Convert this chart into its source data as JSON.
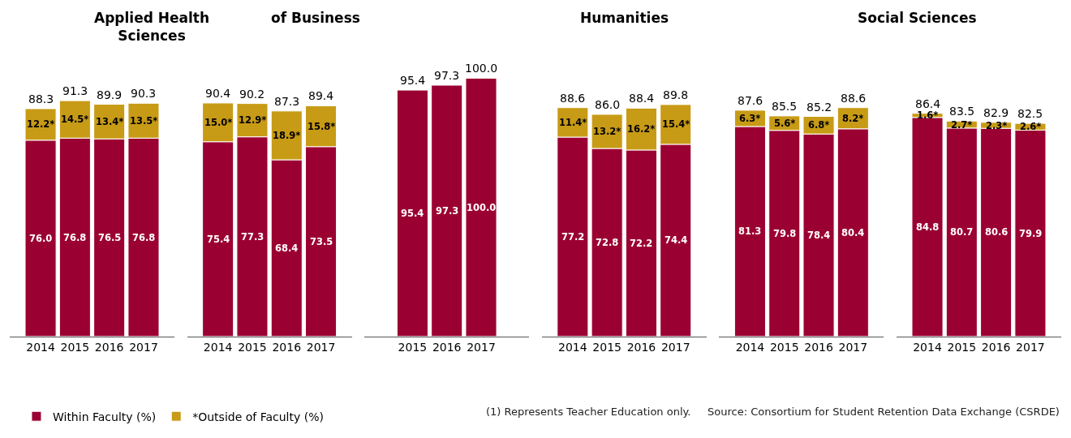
{
  "chart_data": [
    {
      "type": "bar",
      "stacked": true,
      "title": "Applied Health\nSciences",
      "categories": [
        "2014",
        "2015",
        "2016",
        "2017"
      ],
      "tick_labels": "x",
      "legend": "bottom",
      "series": [
        {
          "name": "Within Faculty (%)",
          "color": "#9b0032",
          "values": [
            76.0,
            76.8,
            76.5,
            76.8
          ],
          "value_labels": [
            "76.0",
            "76.8",
            "76.5",
            "76.8"
          ]
        },
        {
          "name": "*Outside of Faculty (%)",
          "color": "#c89b16",
          "values": [
            12.2,
            14.5,
            13.4,
            13.5
          ],
          "value_labels": [
            "12.2*",
            "14.5*",
            "13.4*",
            "13.5*"
          ]
        }
      ],
      "totals": [
        "88.3",
        "91.3",
        "89.9",
        "90.3"
      ]
    },
    {
      "type": "bar",
      "stacked": true,
      "title": "of Business",
      "categories": [
        "2014",
        "2015",
        "2016",
        "2017"
      ],
      "tick_labels": "x",
      "series": [
        {
          "color": "#9b0032",
          "values": [
            75.4,
            77.3,
            68.4,
            73.5
          ],
          "value_labels": [
            "75.4",
            "77.3",
            "68.4",
            "73.5"
          ]
        },
        {
          "color": "#c89b16",
          "values": [
            15.0,
            12.9,
            18.9,
            15.8
          ],
          "value_labels": [
            "15.0*",
            "12.9*",
            "18.9*",
            "15.8*"
          ]
        }
      ],
      "totals": [
        "90.4",
        "90.2",
        "87.3",
        "89.4"
      ]
    },
    {
      "type": "bar",
      "stacked": true,
      "categories": [
        "2015",
        "2016",
        "2017"
      ],
      "tick_labels": "x",
      "series": [
        {
          "color": "#9b0032",
          "values": [
            95.4,
            97.3,
            100.0
          ],
          "value_labels": [
            "95.4",
            "97.3",
            "100.0"
          ]
        }
      ],
      "totals": [
        "95.4",
        "97.3",
        "100.0"
      ]
    },
    {
      "type": "bar",
      "stacked": true,
      "title": "Humanities",
      "categories": [
        "2014",
        "2015",
        "2016",
        "2017"
      ],
      "tick_labels": "x",
      "series": [
        {
          "color": "#9b0032",
          "values": [
            77.2,
            72.8,
            72.2,
            74.4
          ],
          "value_labels": [
            "77.2",
            "72.8",
            "72.2",
            "74.4"
          ]
        },
        {
          "color": "#c89b16",
          "values": [
            11.4,
            13.2,
            16.2,
            15.4
          ],
          "value_labels": [
            "11.4*",
            "13.2*",
            "16.2*",
            "15.4*"
          ]
        }
      ],
      "totals": [
        "88.6",
        "86.0",
        "88.4",
        "89.8"
      ]
    },
    {
      "type": "bar",
      "stacked": true,
      "categories": [
        "2014",
        "2015",
        "2016",
        "2017"
      ],
      "tick_labels": "x",
      "series": [
        {
          "color": "#9b0032",
          "values": [
            81.3,
            79.8,
            78.4,
            80.4
          ],
          "value_labels": [
            "81.3",
            "79.8",
            "78.4",
            "80.4"
          ]
        },
        {
          "color": "#c89b16",
          "values": [
            6.3,
            5.6,
            6.8,
            8.2
          ],
          "value_labels": [
            "6.3*",
            "5.6*",
            "6.8*",
            "8.2*"
          ]
        }
      ],
      "totals": [
        "87.6",
        "85.5",
        "85.2",
        "88.6"
      ]
    },
    {
      "type": "bar",
      "stacked": true,
      "title": "Social Sciences",
      "categories": [
        "2014",
        "2015",
        "2016",
        "2017"
      ],
      "tick_labels": "x",
      "series": [
        {
          "color": "#9b0032",
          "values": [
            84.8,
            80.7,
            80.6,
            79.9
          ],
          "value_labels": [
            "84.8",
            "80.7",
            "80.6",
            "79.9"
          ]
        },
        {
          "color": "#c89b16",
          "values": [
            1.6,
            2.7,
            2.3,
            2.6
          ],
          "value_labels": [
            "1.6*",
            "2.7*",
            "2.3*",
            "2.6*"
          ]
        }
      ],
      "totals": [
        "86.4",
        "83.5",
        "82.9",
        "82.5"
      ],
      "annotations": [
        "(1) Represents Teacher Education only.",
        "Source: Consortium for Student Retention Data Exchange (CSRDE)"
      ]
    }
  ]
}
